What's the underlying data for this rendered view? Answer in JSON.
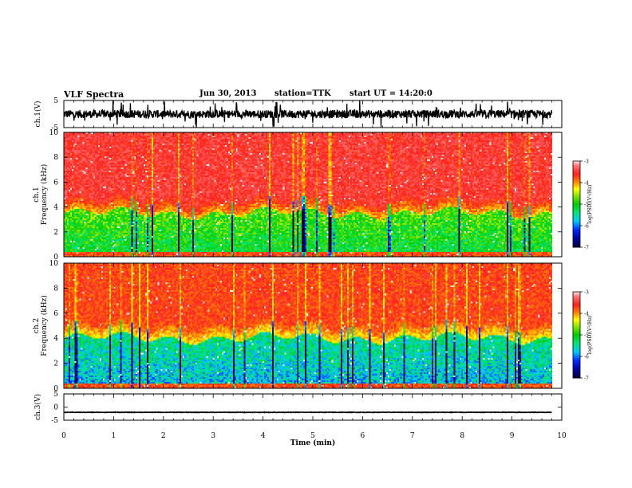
{
  "header": {
    "title": "VLF Spectra",
    "date": "Jun 30, 2013",
    "station": "station=TTK",
    "start": "start UT = 14:20:0"
  },
  "chart_data": [
    {
      "type": "line",
      "panel": "ch1-waveform",
      "title": "",
      "ylabel": "ch.1(V)",
      "xlim": [
        0,
        10
      ],
      "ylim": [
        -5,
        5
      ],
      "y_ticks": [
        5,
        -5
      ],
      "x_range_data": [
        0,
        9.8
      ],
      "description_of_series": "noisy waveform with bursts",
      "series": [
        {
          "values_summary": {
            "baseline": 0,
            "typical_amplitude": 1.5,
            "spike_amplitude": 5
          }
        }
      ]
    },
    {
      "type": "heatmap",
      "panel": "ch1-spectrogram",
      "ylabel_top": "ch.1",
      "ylabel": "Frequency (kHz)",
      "xlim": [
        0,
        10
      ],
      "ylim": [
        0,
        10
      ],
      "y_ticks": [
        0,
        2,
        4,
        6,
        8,
        10
      ],
      "x_range_data": [
        0,
        9.8
      ],
      "colorbar": {
        "label": "log(PSD)(V²/Hz)",
        "range": [
          -7,
          -3
        ],
        "ticks": [
          -3,
          -4,
          -5,
          -6,
          -7
        ]
      },
      "band_summary": {
        "low_band_upper_kHz": 3.5,
        "low_band_level": -5.2,
        "high_band_level": -3.5
      }
    },
    {
      "type": "heatmap",
      "panel": "ch2-spectrogram",
      "ylabel_top": "ch.2",
      "ylabel": "Frequency (kHz)",
      "xlim": [
        0,
        10
      ],
      "ylim": [
        0,
        10
      ],
      "y_ticks": [
        0,
        2,
        4,
        6,
        8,
        10
      ],
      "x_range_data": [
        0,
        9.8
      ],
      "colorbar": {
        "label": "log(PSD)(V²/Hz)",
        "range": [
          -7,
          -3
        ],
        "ticks": [
          -3,
          -4,
          -5,
          -6,
          -7
        ]
      },
      "band_summary": {
        "low_band_upper_kHz": 4.0,
        "low_band_level": -5.8,
        "high_band_level": -3.7
      }
    },
    {
      "type": "line",
      "panel": "ch3-waveform",
      "ylabel": "ch.3(V)",
      "xlim": [
        0,
        10
      ],
      "ylim": [
        -5,
        5
      ],
      "y_ticks": [
        5,
        0,
        -5
      ],
      "x_range_data": [
        0,
        9.8
      ],
      "series": [
        {
          "values_summary": {
            "baseline": -2,
            "typical_amplitude": 0.1
          }
        }
      ],
      "xlabel": "Time (min)",
      "x_ticks": [
        0,
        1,
        2,
        3,
        4,
        5,
        6,
        7,
        8,
        9,
        10
      ]
    }
  ],
  "colors": {
    "red": "#ff1a1a",
    "yellow": "#ffff00",
    "green": "#00cc00",
    "cyan": "#00ffff",
    "blue": "#0000ff",
    "navy": "#000080",
    "black": "#000000"
  }
}
